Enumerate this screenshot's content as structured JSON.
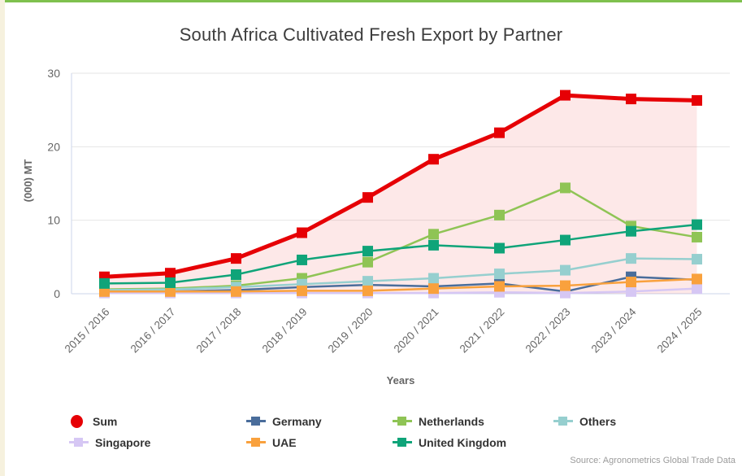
{
  "page": {
    "source": "Source: Agronometrics Global Trade Data"
  },
  "chart_data": {
    "type": "line",
    "title": "South Africa Cultivated Fresh Export by Partner",
    "xlabel": "Years",
    "ylabel": "(000) MT",
    "ylim": [
      0,
      30
    ],
    "yticks": [
      0,
      10,
      20,
      30
    ],
    "grid": true,
    "legend_position": "bottom",
    "categories": [
      "2015 / 2016",
      "2016 / 2017",
      "2017 / 2018",
      "2018 / 2019",
      "2019 / 2020",
      "2020 / 2021",
      "2021 / 2022",
      "2022 / 2023",
      "2023 / 2024",
      "2024 / 2025"
    ],
    "series": [
      {
        "name": "Sum",
        "color": "#e60005",
        "legend_marker": "circle",
        "line_width": 5,
        "area_fill": "rgba(230,0,5,0.09)",
        "values": [
          2.3,
          2.8,
          4.8,
          8.3,
          13.1,
          18.3,
          21.9,
          27.0,
          26.5,
          26.3
        ]
      },
      {
        "name": "Germany",
        "color": "#4a6d9b",
        "legend_marker": "square",
        "line_width": 2.5,
        "values": [
          0.2,
          0.3,
          0.5,
          0.9,
          1.2,
          1.0,
          1.4,
          0.3,
          2.3,
          1.9
        ]
      },
      {
        "name": "Netherlands",
        "color": "#8fc455",
        "legend_marker": "square",
        "line_width": 2.5,
        "values": [
          0.6,
          0.7,
          1.1,
          2.1,
          4.3,
          8.1,
          10.7,
          14.4,
          9.2,
          7.7
        ]
      },
      {
        "name": "Others",
        "color": "#96cfcf",
        "legend_marker": "square",
        "line_width": 2.5,
        "values": [
          0.5,
          0.6,
          0.9,
          1.3,
          1.7,
          2.1,
          2.7,
          3.2,
          4.8,
          4.7
        ]
      },
      {
        "name": "Singapore",
        "color": "#d6c7f4",
        "legend_marker": "square",
        "line_width": 2.5,
        "values": [
          0.1,
          0.1,
          0.1,
          0.1,
          0.1,
          0.1,
          0.2,
          0.1,
          0.3,
          0.7
        ]
      },
      {
        "name": "UAE",
        "color": "#f9a13d",
        "legend_marker": "square",
        "line_width": 2.5,
        "values": [
          0.3,
          0.3,
          0.3,
          0.4,
          0.4,
          0.7,
          1.0,
          1.1,
          1.6,
          2.0
        ]
      },
      {
        "name": "United Kingdom",
        "color": "#0fa479",
        "legend_marker": "square",
        "line_width": 2.5,
        "values": [
          1.4,
          1.5,
          2.6,
          4.6,
          5.8,
          6.6,
          6.2,
          7.3,
          8.5,
          9.4
        ]
      }
    ],
    "style": {
      "grid_color": "#e6e6e6",
      "axis_line_color": "#ccd6eb",
      "tick_label_color": "#666666",
      "marker_size": 13
    }
  }
}
